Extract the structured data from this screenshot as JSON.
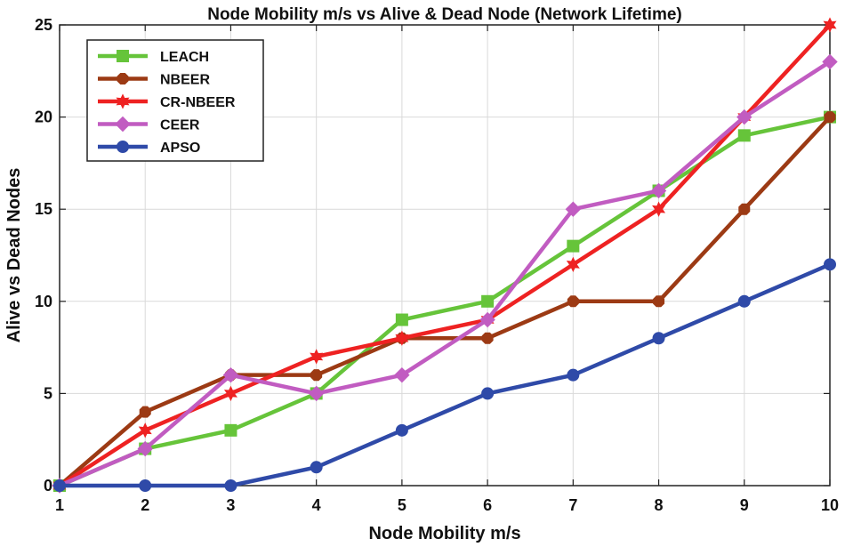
{
  "chart_data": {
    "type": "line",
    "title": "Node Mobility m/s vs Alive & Dead Node (Network Lifetime)",
    "xlabel": "Node Mobility m/s",
    "ylabel": "Alive vs Dead Nodes",
    "x": [
      1,
      2,
      3,
      4,
      5,
      6,
      7,
      8,
      9,
      10
    ],
    "xlim": [
      1,
      10
    ],
    "ylim": [
      0,
      25
    ],
    "xticks": [
      "1",
      "2",
      "3",
      "4",
      "5",
      "6",
      "7",
      "8",
      "9",
      "10"
    ],
    "yticks": [
      "0",
      "5",
      "10",
      "15",
      "20",
      "25"
    ],
    "grid": true,
    "legend_position": "top-left",
    "series": [
      {
        "name": "LEACH",
        "color": "#66c43a",
        "marker": "square",
        "values": [
          0,
          2,
          3,
          5,
          9,
          10,
          13,
          16,
          19,
          20
        ]
      },
      {
        "name": "NBEER",
        "color": "#9c3a14",
        "marker": "octagon",
        "values": [
          0,
          4,
          6,
          6,
          8,
          8,
          10,
          10,
          15,
          20
        ]
      },
      {
        "name": "CR-NBEER",
        "color": "#ee2222",
        "marker": "star",
        "values": [
          0,
          3,
          5,
          7,
          8,
          9,
          12,
          15,
          20,
          25
        ]
      },
      {
        "name": "CEER",
        "color": "#c15cc1",
        "marker": "diamond",
        "values": [
          0,
          2,
          6,
          5,
          6,
          9,
          15,
          16,
          20,
          23
        ]
      },
      {
        "name": "APSO",
        "color": "#2f4aa8",
        "marker": "circle",
        "values": [
          0,
          0,
          0,
          1,
          3,
          5,
          6,
          8,
          10,
          12
        ]
      }
    ]
  }
}
